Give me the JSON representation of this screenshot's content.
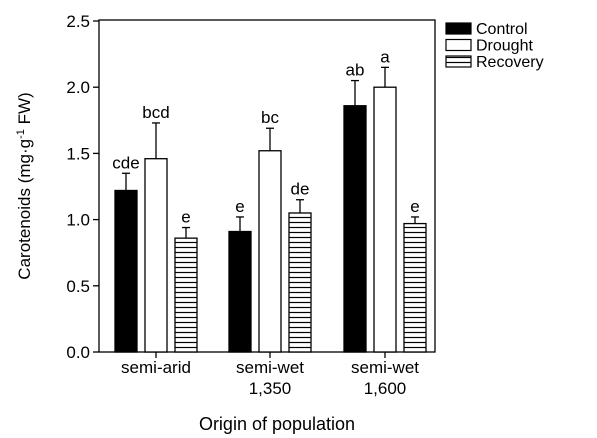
{
  "chart_data": {
    "type": "bar",
    "title": "",
    "xlabel": "Origin of population",
    "ylabel_main": "Carotenoids (mg·g",
    "ylabel_sup": "-1",
    "ylabel_tail": " FW)",
    "ylim": [
      0,
      2.5
    ],
    "yticks": [
      "0.0",
      "0.5",
      "1.0",
      "1.5",
      "2.0",
      "2.5"
    ],
    "legend_position": "top-right",
    "categories": [
      {
        "line1": "semi-arid",
        "line2": ""
      },
      {
        "line1": "semi-wet",
        "line2": "1,350"
      },
      {
        "line1": "semi-wet",
        "line2": "1,600"
      }
    ],
    "series": [
      {
        "name": "Control",
        "fill": "solid-black",
        "values": [
          1.22,
          0.91,
          1.86
        ],
        "errors": [
          0.13,
          0.11,
          0.19
        ],
        "labels": [
          "cde",
          "e",
          "ab"
        ]
      },
      {
        "name": "Drought",
        "fill": "white",
        "values": [
          1.46,
          1.52,
          2.0
        ],
        "errors": [
          0.27,
          0.17,
          0.15
        ],
        "labels": [
          "bcd",
          "bc",
          "a"
        ]
      },
      {
        "name": "Recovery",
        "fill": "horizontal-stripes",
        "values": [
          0.86,
          1.05,
          0.97
        ],
        "errors": [
          0.08,
          0.1,
          0.05
        ],
        "labels": [
          "e",
          "de",
          "e"
        ]
      }
    ]
  }
}
